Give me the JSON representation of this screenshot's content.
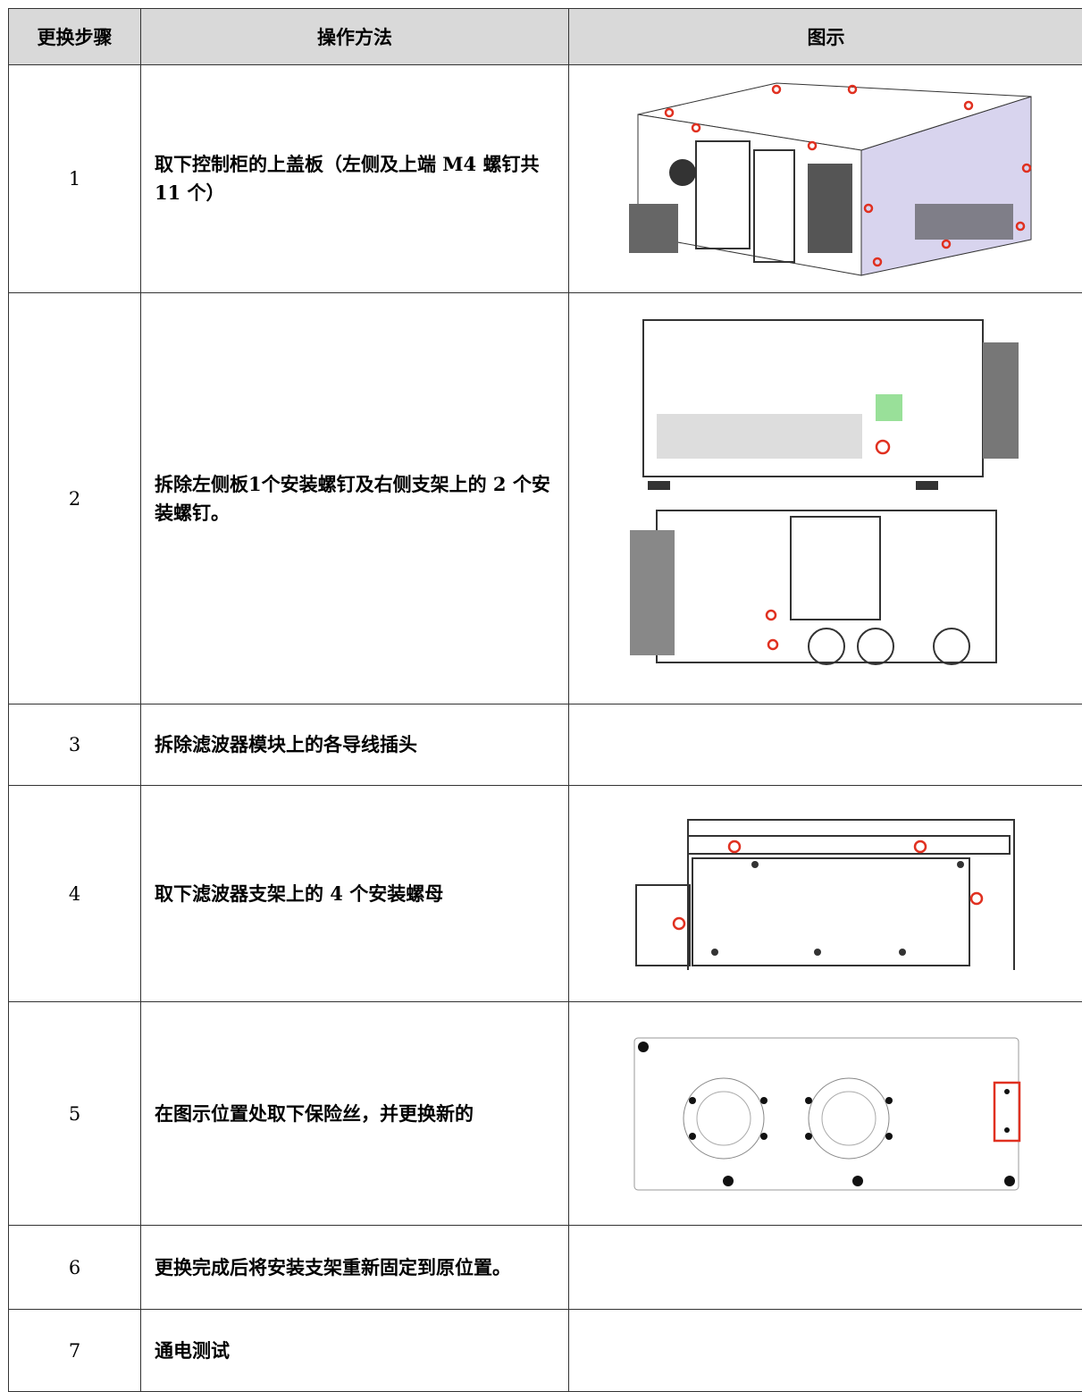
{
  "table": {
    "header": [
      "更换步骤",
      "操作方法",
      "图示"
    ],
    "rows": [
      [
        "1",
        "取下控制柜的上盖板（左侧及上端 M4 螺钉共 11 个）"
      ],
      [
        "2",
        "拆除左侧板1个安装螺钉及右侧支架上的 2 个安装螺钉。"
      ],
      [
        "3",
        "拆除滤波器模块上的各导线插头"
      ],
      [
        "4",
        "取下滤波器支架上的 4 个安装螺母"
      ],
      [
        "5",
        "在图示位置处取下保险丝，并更换新的"
      ],
      [
        "6",
        "更换完成后将安装支架重新固定到原位置。"
      ],
      [
        "7",
        "通电测试"
      ]
    ]
  }
}
